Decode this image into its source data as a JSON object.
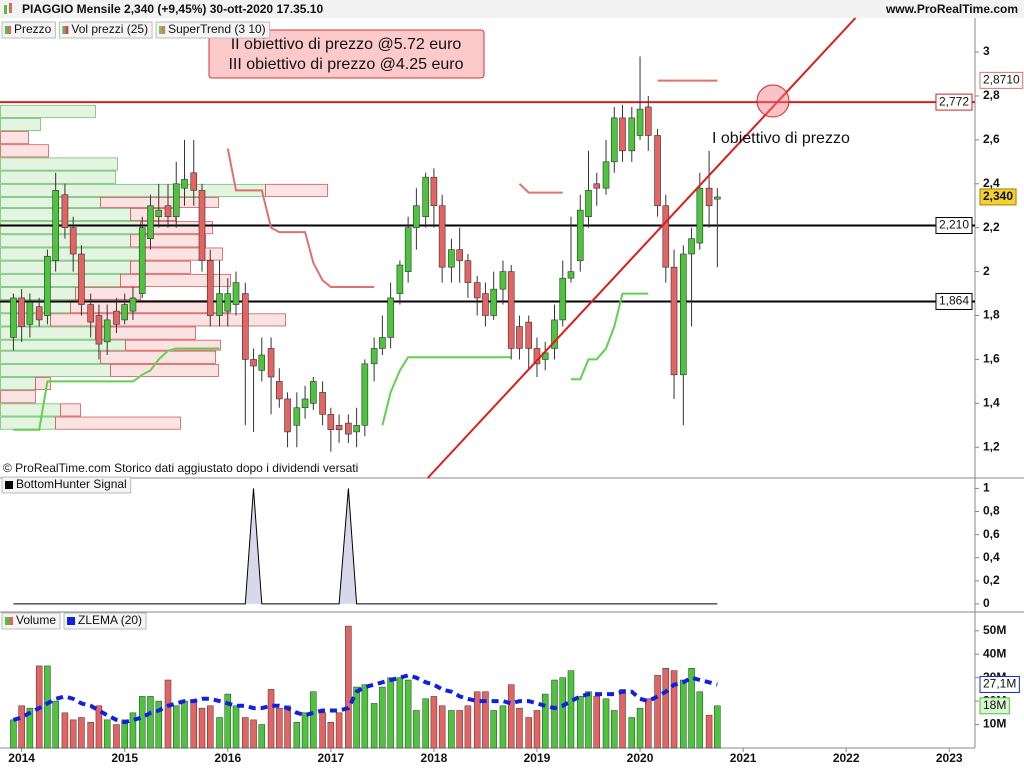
{
  "header": {
    "title": "PIAGGIO Mensile 2,340 (+9,45%) 30-ott-2020 17.35.10",
    "site": "www.ProRealTime.com"
  },
  "footer": "© ProRealTime.com  Storico dati aggiustato dopo i dividendi versati",
  "chart_data": {
    "type": "candlestick",
    "name": "Prezzo",
    "up_color": "#4cc43c",
    "down_color": "#e46464",
    "x": [
      2013.92,
      2014.0,
      2014.08,
      2014.17,
      2014.25,
      2014.33,
      2014.42,
      2014.5,
      2014.58,
      2014.67,
      2014.75,
      2014.83,
      2014.92,
      2015.0,
      2015.08,
      2015.17,
      2015.25,
      2015.33,
      2015.42,
      2015.5,
      2015.58,
      2015.67,
      2015.75,
      2015.83,
      2015.92,
      2016.0,
      2016.08,
      2016.17,
      2016.25,
      2016.33,
      2016.42,
      2016.5,
      2016.58,
      2016.67,
      2016.75,
      2016.83,
      2016.92,
      2017.0,
      2017.08,
      2017.17,
      2017.25,
      2017.33,
      2017.42,
      2017.5,
      2017.58,
      2017.67,
      2017.75,
      2017.83,
      2017.92,
      2018.0,
      2018.08,
      2018.17,
      2018.25,
      2018.33,
      2018.42,
      2018.5,
      2018.58,
      2018.67,
      2018.75,
      2018.83,
      2018.92,
      2019.0,
      2019.08,
      2019.17,
      2019.25,
      2019.33,
      2019.42,
      2019.5,
      2019.58,
      2019.67,
      2019.75,
      2019.83,
      2019.92,
      2020.0,
      2020.08,
      2020.17,
      2020.25,
      2020.33,
      2020.42,
      2020.5,
      2020.58,
      2020.67,
      2020.75
    ],
    "open": [
      1.7,
      1.88,
      1.76,
      1.84,
      1.8,
      2.05,
      2.35,
      2.2,
      2.08,
      1.85,
      1.8,
      1.68,
      1.82,
      1.78,
      1.82,
      1.9,
      2.15,
      2.25,
      2.3,
      2.25,
      2.38,
      2.45,
      2.37,
      2.05,
      1.8,
      1.82,
      1.85,
      1.9,
      1.6,
      1.55,
      1.65,
      1.5,
      1.42,
      1.3,
      1.38,
      1.4,
      1.45,
      1.35,
      1.3,
      1.31,
      1.27,
      1.3,
      1.58,
      1.65,
      1.7,
      1.9,
      2.0,
      2.2,
      2.25,
      2.43,
      2.3,
      2.02,
      2.1,
      2.05,
      1.95,
      1.9,
      1.8,
      1.92,
      2.0,
      1.75,
      1.77,
      1.65,
      1.6,
      1.65,
      1.78,
      1.97,
      2.05,
      2.25,
      2.4,
      2.38,
      2.5,
      2.7,
      2.55,
      2.62,
      2.75,
      2.62,
      2.3,
      2.02,
      1.53,
      2.08,
      2.13,
      2.38,
      2.33
    ],
    "high": [
      1.9,
      1.92,
      1.9,
      1.88,
      2.1,
      2.45,
      2.4,
      2.25,
      2.12,
      1.9,
      1.85,
      1.85,
      1.88,
      1.9,
      1.93,
      2.25,
      2.35,
      2.4,
      2.4,
      2.5,
      2.6,
      2.6,
      2.4,
      2.1,
      2.05,
      1.97,
      2.0,
      1.95,
      1.65,
      1.7,
      1.7,
      1.56,
      1.45,
      1.45,
      1.48,
      1.52,
      1.5,
      1.38,
      1.35,
      1.35,
      1.38,
      1.6,
      1.7,
      1.8,
      1.95,
      2.05,
      2.25,
      2.38,
      2.45,
      2.47,
      2.35,
      2.15,
      2.2,
      2.08,
      1.98,
      1.95,
      2.0,
      2.05,
      2.03,
      1.8,
      1.8,
      1.7,
      1.68,
      1.85,
      2.05,
      2.25,
      2.35,
      2.55,
      2.45,
      2.6,
      2.75,
      2.76,
      2.75,
      2.98,
      2.8,
      2.65,
      2.35,
      2.1,
      2.12,
      2.2,
      2.45,
      2.55,
      2.38
    ],
    "low": [
      1.64,
      1.68,
      1.7,
      1.75,
      1.76,
      2.0,
      2.15,
      2.0,
      1.8,
      1.7,
      1.6,
      1.62,
      1.72,
      1.76,
      1.78,
      1.88,
      2.1,
      2.2,
      2.2,
      2.2,
      2.3,
      2.3,
      2.0,
      1.75,
      1.75,
      1.75,
      1.8,
      1.3,
      1.27,
      1.5,
      1.35,
      1.38,
      1.2,
      1.2,
      1.33,
      1.37,
      1.3,
      1.18,
      1.22,
      1.22,
      1.2,
      1.25,
      1.5,
      1.62,
      1.65,
      1.85,
      1.95,
      2.1,
      2.2,
      2.2,
      1.95,
      1.95,
      1.95,
      1.88,
      1.8,
      1.75,
      1.78,
      1.85,
      1.6,
      1.6,
      1.55,
      1.52,
      1.55,
      1.6,
      1.75,
      1.95,
      2.0,
      2.2,
      2.3,
      2.35,
      2.45,
      2.5,
      2.5,
      2.6,
      2.55,
      2.25,
      1.95,
      1.42,
      1.3,
      1.75,
      2.1,
      2.2,
      2.02
    ],
    "close": [
      1.88,
      1.75,
      1.86,
      1.78,
      2.07,
      2.37,
      2.2,
      2.08,
      1.85,
      1.77,
      1.67,
      1.78,
      1.76,
      1.85,
      1.88,
      2.2,
      2.3,
      2.28,
      2.25,
      2.4,
      2.42,
      2.37,
      2.05,
      1.8,
      1.9,
      1.9,
      1.95,
      1.6,
      1.57,
      1.62,
      1.52,
      1.42,
      1.27,
      1.38,
      1.42,
      1.5,
      1.35,
      1.28,
      1.28,
      1.26,
      1.3,
      1.58,
      1.65,
      1.7,
      1.88,
      2.03,
      2.2,
      2.3,
      2.43,
      2.3,
      2.02,
      2.1,
      2.05,
      1.95,
      1.88,
      1.8,
      1.92,
      2.0,
      1.65,
      1.65,
      1.65,
      1.58,
      1.63,
      1.78,
      1.97,
      2.0,
      2.28,
      2.37,
      2.38,
      2.5,
      2.7,
      2.55,
      2.7,
      2.74,
      2.62,
      2.3,
      2.02,
      1.53,
      2.08,
      2.15,
      2.38,
      2.3,
      2.34
    ],
    "xlim": [
      2013.79,
      2023.25
    ],
    "xticks": [
      2014,
      2015,
      2016,
      2017,
      2018,
      2019,
      2020,
      2021,
      2022,
      2023
    ],
    "ylim": [
      1.06,
      3.155
    ],
    "yticks": [
      {
        "value": 1.2,
        "label": "1,2"
      },
      {
        "value": 1.4,
        "label": "1,4"
      },
      {
        "value": 1.6,
        "label": "1,6"
      },
      {
        "value": 1.8,
        "label": "1,8"
      },
      2,
      {
        "value": 2.2,
        "label": "2,2"
      },
      {
        "value": 2.4,
        "label": "2,4"
      },
      {
        "value": 2.6,
        "label": "2,6"
      },
      {
        "value": 2.8,
        "label": "2,8"
      },
      3
    ],
    "last_price": {
      "value": 2.34,
      "label": "2,340"
    },
    "levels": [
      {
        "value": 2.772,
        "label": "2,772",
        "color": "#d61f1f"
      },
      {
        "value": 2.21,
        "label": "2,210",
        "color": "#000000"
      },
      {
        "value": 1.864,
        "label": "1,864",
        "color": "#000000"
      }
    ],
    "trendline": {
      "x": [
        2017.94,
        2022.09
      ],
      "y": [
        1.06,
        3.155
      ],
      "color": "#e01b1b"
    },
    "target_marker": {
      "x": 2021.29,
      "y": 2.777
    },
    "annotations": {
      "targets": [
        "II obiettivo di prezzo @5.72 euro",
        "III obiettivo di prezzo @4.25 euro"
      ],
      "first_target": "I obiettivo di prezzo"
    },
    "volume_profile": {
      "name": "Vol prezzi (25)",
      "bins": [
        2.76,
        2.7,
        2.64,
        2.58,
        2.52,
        2.46,
        2.4,
        2.34,
        2.29,
        2.23,
        2.17,
        2.11,
        2.05,
        1.99,
        1.93,
        1.87,
        1.81,
        1.75,
        1.69,
        1.64,
        1.58,
        1.52,
        1.46,
        1.4,
        1.34,
        1.28
      ],
      "up": [
        95,
        40,
        0,
        0,
        117,
        115,
        265,
        100,
        130,
        140,
        130,
        140,
        130,
        120,
        75,
        70,
        50,
        95,
        125,
        100,
        110,
        35,
        0,
        60,
        55
      ],
      "down": [
        0,
        0,
        28,
        48,
        0,
        0,
        62,
        118,
        45,
        72,
        75,
        82,
        60,
        110,
        65,
        160,
        235,
        100,
        95,
        115,
        108,
        15,
        35,
        20,
        125
      ],
      "xlim": [
        0,
        975
      ],
      "up_color": "#5cb85c",
      "down_color": "#cc4444"
    },
    "supertrend": {
      "name": "SuperTrend (3 10)",
      "up_color": "#5fd14e",
      "down_color": "#e07070",
      "support": [
        1.28,
        1.28,
        1.28,
        1.28,
        1.5,
        1.5,
        1.5,
        1.5,
        1.5,
        1.5,
        1.5,
        1.5,
        1.5,
        1.5,
        1.5,
        1.53,
        1.55,
        1.6,
        1.64,
        1.65,
        1.65,
        1.65,
        1.65,
        1.65,
        1.65,
        null,
        null,
        null,
        null,
        null,
        null,
        null,
        null,
        null,
        null,
        null,
        null,
        null,
        null,
        null,
        null,
        null,
        null,
        1.3,
        1.45,
        1.55,
        1.61,
        1.61,
        1.61,
        1.61,
        1.61,
        1.61,
        1.61,
        1.61,
        1.61,
        1.61,
        1.61,
        1.61,
        1.61,
        null,
        null,
        null,
        null,
        null,
        null,
        1.51,
        1.51,
        1.6,
        1.6,
        1.65,
        1.75,
        1.9,
        1.9,
        1.9,
        1.9,
        null,
        null,
        null,
        null,
        null,
        null,
        null,
        null
      ],
      "resistance": [
        null,
        null,
        null,
        null,
        null,
        null,
        null,
        null,
        null,
        null,
        null,
        null,
        null,
        null,
        null,
        null,
        null,
        null,
        null,
        null,
        null,
        null,
        null,
        null,
        null,
        2.56,
        2.37,
        2.37,
        2.37,
        2.37,
        2.2,
        2.18,
        2.18,
        2.18,
        2.18,
        2.04,
        1.96,
        1.93,
        1.93,
        1.93,
        1.93,
        1.93,
        1.93,
        null,
        null,
        null,
        null,
        null,
        null,
        null,
        null,
        null,
        null,
        null,
        null,
        null,
        null,
        null,
        null,
        2.4,
        2.36,
        2.36,
        2.36,
        2.36,
        2.36,
        null,
        null,
        null,
        null,
        null,
        null,
        null,
        null,
        null,
        null,
        2.87,
        2.87,
        2.87,
        2.87,
        2.87,
        2.87,
        2.87,
        2.87
      ],
      "last": {
        "value": 2.871,
        "label": "2,8710"
      }
    },
    "indicator": {
      "type": "line",
      "name": "BottomHunter Signal",
      "color": "#000000",
      "fill": "#d8d8ec",
      "values": [
        0,
        0,
        0,
        0,
        0,
        0,
        0,
        0,
        0,
        0,
        0,
        0,
        0,
        0,
        0,
        0,
        0,
        0,
        0,
        0,
        0,
        0,
        0,
        0,
        0,
        0,
        0,
        0,
        1,
        0,
        0,
        0,
        0,
        0,
        0,
        0,
        0,
        0,
        0,
        1,
        0,
        0,
        0,
        0,
        0,
        0,
        0,
        0,
        0,
        0,
        0,
        0,
        0,
        0,
        0,
        0,
        0,
        0,
        0,
        0,
        0,
        0,
        0,
        0,
        0,
        0,
        0,
        0,
        0,
        0,
        0,
        0,
        0,
        0,
        0,
        0,
        0,
        0,
        0,
        0,
        0,
        0,
        0
      ],
      "ylim": [
        -0.07,
        1.09
      ],
      "yticks": [
        0,
        {
          "value": 0.2,
          "label": "0,2"
        },
        {
          "value": 0.4,
          "label": "0,4"
        },
        {
          "value": 0.6,
          "label": "0,6"
        },
        {
          "value": 0.8,
          "label": "0,8"
        },
        1
      ]
    },
    "volume": {
      "type": "bar",
      "name": "Volume",
      "values": [
        12,
        18,
        17,
        35,
        35,
        20,
        15,
        12,
        13,
        11,
        18,
        12,
        10,
        12,
        15,
        22,
        22,
        20,
        29,
        18,
        20,
        20,
        17,
        18,
        13,
        23,
        18,
        13,
        12,
        10,
        25,
        17,
        18,
        11,
        15,
        24,
        15,
        11,
        15,
        52,
        26,
        27,
        19,
        26,
        30,
        30,
        29,
        16,
        21,
        22,
        18,
        16,
        16,
        18,
        24,
        24,
        16,
        18,
        27,
        17,
        13,
        16,
        23,
        29,
        30,
        33,
        22,
        24,
        22,
        21,
        16,
        25,
        13,
        17,
        21,
        31,
        34,
        33,
        29,
        34,
        24,
        14,
        18
      ],
      "ylim": [
        0,
        58
      ],
      "yticks": [
        {
          "value": 10,
          "label": "10M"
        },
        {
          "value": 20,
          "label": "20M"
        },
        {
          "value": 30,
          "label": "30M"
        },
        {
          "value": 40,
          "label": "40M"
        },
        {
          "value": 50,
          "label": "50M"
        }
      ],
      "last": {
        "value": 18,
        "label": "18M"
      },
      "zlema": {
        "name": "ZLEMA (20)",
        "color": "#1020e0",
        "values": [
          12,
          13,
          15,
          17,
          19,
          21,
          22,
          21,
          19,
          18,
          16,
          14,
          12,
          11,
          12,
          13,
          15,
          16,
          18,
          19,
          20,
          20,
          21,
          21,
          20,
          19,
          18,
          18,
          17,
          17,
          18,
          18,
          17,
          15,
          14,
          15,
          16,
          16,
          16,
          17,
          24,
          26,
          27,
          28,
          29,
          30,
          31,
          30,
          28,
          27,
          25,
          24,
          22,
          21,
          20,
          20,
          20,
          20,
          19,
          20,
          20,
          19,
          18,
          17,
          18,
          20,
          22,
          23,
          23,
          23,
          23,
          24,
          24,
          21,
          20,
          22,
          24,
          27,
          28,
          30,
          29,
          28,
          27.1
        ],
        "last": {
          "value": 27.1,
          "label": "27,1M"
        }
      }
    }
  }
}
